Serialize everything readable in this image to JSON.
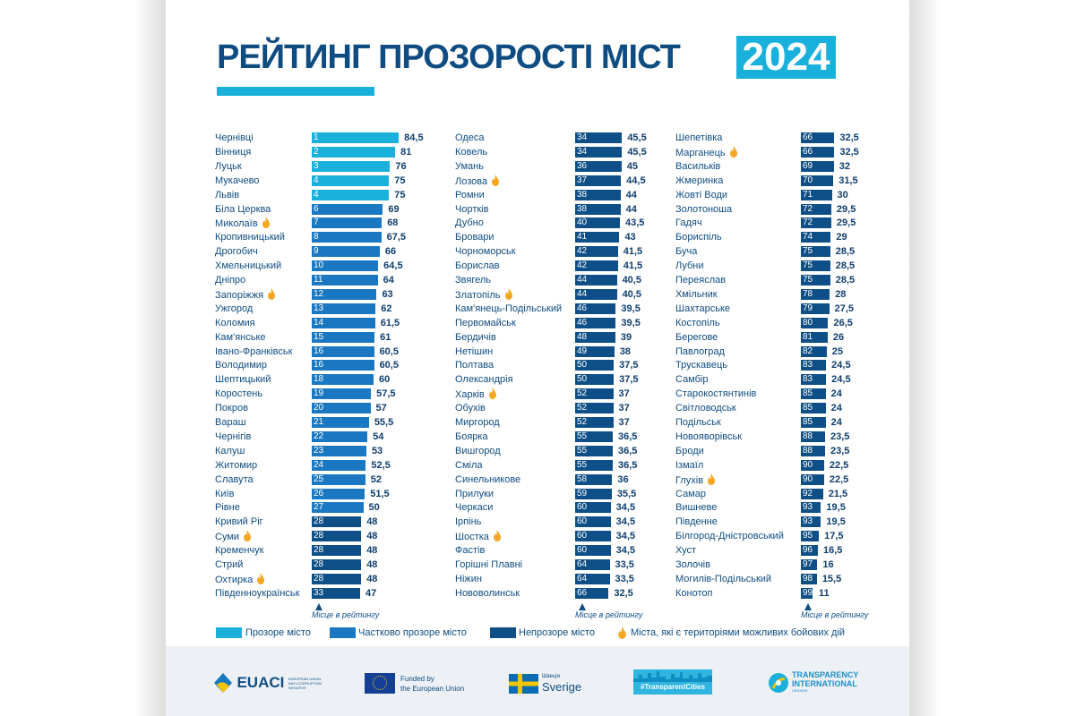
{
  "header": {
    "title": "РЕЙТИНГ ПРОЗОРОСТІ МІСТ",
    "year": "2024"
  },
  "colors": {
    "transparent": "#1ab0dc",
    "partial": "#1a78c2",
    "opaque": "#0d4f86",
    "conflict": "#f5a623",
    "title": "#0f4c81"
  },
  "legend": {
    "transparent": "Прозоре місто",
    "partial": "Частково прозоре місто",
    "opaque": "Непрозоре місто",
    "conflict": "Міста, які є територіями можливих бойових дій"
  },
  "chart_data": {
    "type": "bar",
    "orientation": "horizontal",
    "axis_caption": "Місце в рейтингу",
    "columns": [
      [
        {
          "rank": 1,
          "city": "Чернівці",
          "score": 84.5,
          "cat": "transparent"
        },
        {
          "rank": 2,
          "city": "Вінниця",
          "score": 81,
          "cat": "transparent"
        },
        {
          "rank": 3,
          "city": "Луцьк",
          "score": 76,
          "cat": "transparent"
        },
        {
          "rank": 4,
          "city": "Мукачево",
          "score": 75,
          "cat": "transparent"
        },
        {
          "rank": 4,
          "city": "Львів",
          "score": 75,
          "cat": "transparent"
        },
        {
          "rank": 6,
          "city": "Біла Церква",
          "score": 69,
          "cat": "partial"
        },
        {
          "rank": 7,
          "city": "Миколаїв",
          "score": 68,
          "cat": "partial",
          "conflict": true
        },
        {
          "rank": 8,
          "city": "Кропивницький",
          "score": 67.5,
          "cat": "partial"
        },
        {
          "rank": 9,
          "city": "Дрогобич",
          "score": 66,
          "cat": "partial"
        },
        {
          "rank": 10,
          "city": "Хмельницький",
          "score": 64.5,
          "cat": "partial"
        },
        {
          "rank": 11,
          "city": "Дніпро",
          "score": 64,
          "cat": "partial"
        },
        {
          "rank": 12,
          "city": "Запоріжжя",
          "score": 63,
          "cat": "partial",
          "conflict": true
        },
        {
          "rank": 13,
          "city": "Ужгород",
          "score": 62,
          "cat": "partial"
        },
        {
          "rank": 14,
          "city": "Коломия",
          "score": 61.5,
          "cat": "partial"
        },
        {
          "rank": 15,
          "city": "Кам'янське",
          "score": 61,
          "cat": "partial"
        },
        {
          "rank": 16,
          "city": "Івано-Франківськ",
          "score": 60.5,
          "cat": "partial"
        },
        {
          "rank": 16,
          "city": "Володимир",
          "score": 60.5,
          "cat": "partial"
        },
        {
          "rank": 18,
          "city": "Шептицький",
          "score": 60,
          "cat": "partial"
        },
        {
          "rank": 19,
          "city": "Коростень",
          "score": 57.5,
          "cat": "partial"
        },
        {
          "rank": 20,
          "city": "Покров",
          "score": 57,
          "cat": "partial"
        },
        {
          "rank": 21,
          "city": "Вараш",
          "score": 55.5,
          "cat": "partial"
        },
        {
          "rank": 22,
          "city": "Чернігів",
          "score": 54,
          "cat": "partial"
        },
        {
          "rank": 23,
          "city": "Калуш",
          "score": 53,
          "cat": "partial"
        },
        {
          "rank": 24,
          "city": "Житомир",
          "score": 52.5,
          "cat": "partial"
        },
        {
          "rank": 25,
          "city": "Славута",
          "score": 52,
          "cat": "partial"
        },
        {
          "rank": 26,
          "city": "Київ",
          "score": 51.5,
          "cat": "partial"
        },
        {
          "rank": 27,
          "city": "Рівне",
          "score": 50,
          "cat": "partial"
        },
        {
          "rank": 28,
          "city": "Кривий Ріг",
          "score": 48,
          "cat": "opaque"
        },
        {
          "rank": 28,
          "city": "Суми",
          "score": 48,
          "cat": "opaque",
          "conflict": true
        },
        {
          "rank": 28,
          "city": "Кременчук",
          "score": 48,
          "cat": "opaque"
        },
        {
          "rank": 28,
          "city": "Стрий",
          "score": 48,
          "cat": "opaque"
        },
        {
          "rank": 28,
          "city": "Охтирка",
          "score": 48,
          "cat": "opaque",
          "conflict": true
        },
        {
          "rank": 33,
          "city": "Південноукраїнськ",
          "score": 47,
          "cat": "opaque"
        }
      ],
      [
        {
          "rank": 34,
          "city": "Одеса",
          "score": 45.5,
          "cat": "opaque"
        },
        {
          "rank": 34,
          "city": "Ковель",
          "score": 45.5,
          "cat": "opaque"
        },
        {
          "rank": 36,
          "city": "Умань",
          "score": 45,
          "cat": "opaque"
        },
        {
          "rank": 37,
          "city": "Лозова",
          "score": 44.5,
          "cat": "opaque",
          "conflict": true
        },
        {
          "rank": 38,
          "city": "Ромни",
          "score": 44,
          "cat": "opaque"
        },
        {
          "rank": 38,
          "city": "Чортків",
          "score": 44,
          "cat": "opaque"
        },
        {
          "rank": 40,
          "city": "Дубно",
          "score": 43.5,
          "cat": "opaque"
        },
        {
          "rank": 41,
          "city": "Бровари",
          "score": 43,
          "cat": "opaque"
        },
        {
          "rank": 42,
          "city": "Чорноморськ",
          "score": 41.5,
          "cat": "opaque"
        },
        {
          "rank": 42,
          "city": "Борислав",
          "score": 41.5,
          "cat": "opaque"
        },
        {
          "rank": 44,
          "city": "Звягель",
          "score": 40.5,
          "cat": "opaque"
        },
        {
          "rank": 44,
          "city": "Златопіль",
          "score": 40.5,
          "cat": "opaque",
          "conflict": true
        },
        {
          "rank": 46,
          "city": "Кам'янець-Подільський",
          "score": 39.5,
          "cat": "opaque"
        },
        {
          "rank": 46,
          "city": "Первомайськ",
          "score": 39.5,
          "cat": "opaque"
        },
        {
          "rank": 48,
          "city": "Бердичів",
          "score": 39,
          "cat": "opaque"
        },
        {
          "rank": 49,
          "city": "Нетішин",
          "score": 38,
          "cat": "opaque"
        },
        {
          "rank": 50,
          "city": "Полтава",
          "score": 37.5,
          "cat": "opaque"
        },
        {
          "rank": 50,
          "city": "Олександрія",
          "score": 37.5,
          "cat": "opaque"
        },
        {
          "rank": 52,
          "city": "Харків",
          "score": 37,
          "cat": "opaque",
          "conflict": true
        },
        {
          "rank": 52,
          "city": "Обухів",
          "score": 37,
          "cat": "opaque"
        },
        {
          "rank": 52,
          "city": "Миргород",
          "score": 37,
          "cat": "opaque"
        },
        {
          "rank": 55,
          "city": "Боярка",
          "score": 36.5,
          "cat": "opaque"
        },
        {
          "rank": 55,
          "city": "Вишгород",
          "score": 36.5,
          "cat": "opaque"
        },
        {
          "rank": 55,
          "city": "Сміла",
          "score": 36.5,
          "cat": "opaque"
        },
        {
          "rank": 58,
          "city": "Синельникове",
          "score": 36,
          "cat": "opaque"
        },
        {
          "rank": 59,
          "city": "Прилуки",
          "score": 35.5,
          "cat": "opaque"
        },
        {
          "rank": 60,
          "city": "Черкаси",
          "score": 34.5,
          "cat": "opaque"
        },
        {
          "rank": 60,
          "city": "Ірпінь",
          "score": 34.5,
          "cat": "opaque"
        },
        {
          "rank": 60,
          "city": "Шостка",
          "score": 34.5,
          "cat": "opaque",
          "conflict": true
        },
        {
          "rank": 60,
          "city": "Фастів",
          "score": 34.5,
          "cat": "opaque"
        },
        {
          "rank": 64,
          "city": "Горішні Плавні",
          "score": 33.5,
          "cat": "opaque"
        },
        {
          "rank": 64,
          "city": "Ніжин",
          "score": 33.5,
          "cat": "opaque"
        },
        {
          "rank": 66,
          "city": "Нововолинськ",
          "score": 32.5,
          "cat": "opaque"
        }
      ],
      [
        {
          "rank": 66,
          "city": "Шепетівка",
          "score": 32.5,
          "cat": "opaque"
        },
        {
          "rank": 66,
          "city": "Марганець",
          "score": 32.5,
          "cat": "opaque",
          "conflict": true
        },
        {
          "rank": 69,
          "city": "Васильків",
          "score": 32,
          "cat": "opaque"
        },
        {
          "rank": 70,
          "city": "Жмеринка",
          "score": 31.5,
          "cat": "opaque"
        },
        {
          "rank": 71,
          "city": "Жовті Води",
          "score": 30,
          "cat": "opaque"
        },
        {
          "rank": 72,
          "city": "Золотоноша",
          "score": 29.5,
          "cat": "opaque"
        },
        {
          "rank": 72,
          "city": "Гадяч",
          "score": 29.5,
          "cat": "opaque"
        },
        {
          "rank": 74,
          "city": "Бориспіль",
          "score": 29,
          "cat": "opaque"
        },
        {
          "rank": 75,
          "city": "Буча",
          "score": 28.5,
          "cat": "opaque"
        },
        {
          "rank": 75,
          "city": "Лубни",
          "score": 28.5,
          "cat": "opaque"
        },
        {
          "rank": 75,
          "city": "Переяслав",
          "score": 28.5,
          "cat": "opaque"
        },
        {
          "rank": 78,
          "city": "Хмільник",
          "score": 28,
          "cat": "opaque"
        },
        {
          "rank": 79,
          "city": "Шахтарське",
          "score": 27.5,
          "cat": "opaque"
        },
        {
          "rank": 80,
          "city": "Костопіль",
          "score": 26.5,
          "cat": "opaque"
        },
        {
          "rank": 81,
          "city": "Берегове",
          "score": 26,
          "cat": "opaque"
        },
        {
          "rank": 82,
          "city": "Павлоград",
          "score": 25,
          "cat": "opaque"
        },
        {
          "rank": 83,
          "city": "Трускавець",
          "score": 24.5,
          "cat": "opaque"
        },
        {
          "rank": 83,
          "city": "Самбір",
          "score": 24.5,
          "cat": "opaque"
        },
        {
          "rank": 85,
          "city": "Старокостянтинів",
          "score": 24,
          "cat": "opaque"
        },
        {
          "rank": 85,
          "city": "Світловодськ",
          "score": 24,
          "cat": "opaque"
        },
        {
          "rank": 85,
          "city": "Подільськ",
          "score": 24,
          "cat": "opaque"
        },
        {
          "rank": 88,
          "city": "Новояворівськ",
          "score": 23.5,
          "cat": "opaque"
        },
        {
          "rank": 88,
          "city": "Броди",
          "score": 23.5,
          "cat": "opaque"
        },
        {
          "rank": 90,
          "city": "Ізмаїл",
          "score": 22.5,
          "cat": "opaque"
        },
        {
          "rank": 90,
          "city": "Глухів",
          "score": 22.5,
          "cat": "opaque",
          "conflict": true
        },
        {
          "rank": 92,
          "city": "Самар",
          "score": 21.5,
          "cat": "opaque"
        },
        {
          "rank": 93,
          "city": "Вишневе",
          "score": 19.5,
          "cat": "opaque"
        },
        {
          "rank": 93,
          "city": "Південне",
          "score": 19.5,
          "cat": "opaque"
        },
        {
          "rank": 95,
          "city": "Білгород-Дністровський",
          "score": 17.5,
          "cat": "opaque"
        },
        {
          "rank": 96,
          "city": "Хуст",
          "score": 16.5,
          "cat": "opaque"
        },
        {
          "rank": 97,
          "city": "Золочів",
          "score": 16,
          "cat": "opaque"
        },
        {
          "rank": 98,
          "city": "Могилів-Подільський",
          "score": 15.5,
          "cat": "opaque"
        },
        {
          "rank": 99,
          "city": "Конотоп",
          "score": 11,
          "cat": "opaque"
        }
      ]
    ]
  },
  "footer": {
    "logos": {
      "euaci": "EUACI",
      "euaci_sub": "EUROPEAN UNION ANTI-CORRUPTION INITIATIVE",
      "eu_line1": "Funded by",
      "eu_line2": "the European Union",
      "sweden_line1": "Швеція",
      "sweden_line2": "Sverige",
      "cities": "#TransparentCities",
      "ti_line1": "TRANSPARENCY",
      "ti_line2": "INTERNATIONAL",
      "ti_line3": "UKRAINE"
    }
  }
}
